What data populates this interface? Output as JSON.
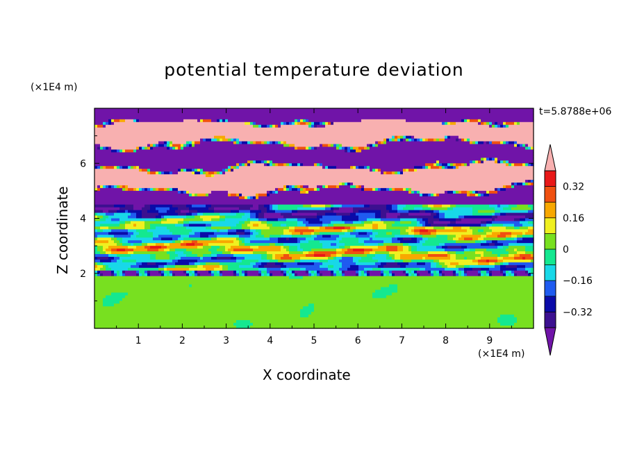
{
  "chart_data": {
    "type": "heatmap",
    "title": "potential temperature deviation",
    "xlabel": "X coordinate",
    "ylabel": "Z coordinate",
    "x_unit": "(×1E4 m)",
    "z_unit": "(×1E4 m)",
    "time_label": "t=5.8788e+06",
    "xlim": [
      0,
      10
    ],
    "ylim": [
      0,
      8
    ],
    "x_ticks": [
      1,
      2,
      3,
      4,
      5,
      6,
      7,
      8,
      9
    ],
    "y_ticks": [
      2,
      4,
      6
    ],
    "colorbar": {
      "levels": [
        -0.4,
        -0.32,
        -0.24,
        -0.16,
        -0.08,
        0,
        0.08,
        0.16,
        0.24,
        0.32,
        0.4
      ],
      "labels": [
        "0.32",
        "0.16",
        "0",
        "−0.16",
        "−0.32"
      ],
      "label_values": [
        0.32,
        0.16,
        0,
        -0.16,
        -0.32
      ],
      "colors_low_to_high": [
        "#3c1090",
        "#0a0aa8",
        "#1f5bf0",
        "#18d8e8",
        "#14e890",
        "#78e020",
        "#f0f020",
        "#f8a800",
        "#f05010",
        "#e81818"
      ],
      "under_color": "#7014a8",
      "over_color": "#f8b0b0"
    },
    "bands_approx": [
      {
        "z_range": [
          7.6,
          8.0
        ],
        "value": "below -0.4"
      },
      {
        "z_range": [
          4.6,
          7.6
        ],
        "value": "alternating above 0.4 / below -0.4 layers"
      },
      {
        "z_range": [
          2.0,
          4.6
        ],
        "value": "mixed -0.32 to 0.32"
      },
      {
        "z_range": [
          0.0,
          2.0
        ],
        "value": "about 0 to 0.08"
      }
    ]
  }
}
